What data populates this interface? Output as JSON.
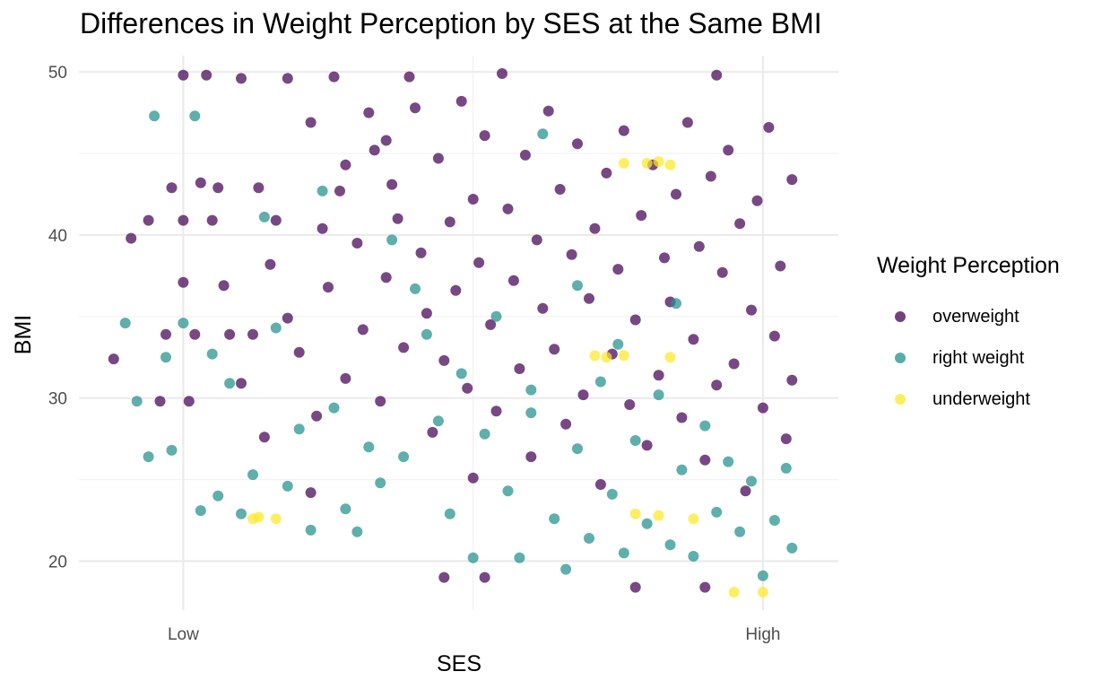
{
  "chart_data": {
    "type": "scatter",
    "title": "Differences in Weight Perception by SES at the Same BMI",
    "xlabel": "SES",
    "ylabel": "BMI",
    "x_ticks": [
      "Low",
      "High"
    ],
    "xlim": [
      -0.18,
      1.13
    ],
    "y_ticks": [
      20,
      30,
      40,
      50
    ],
    "ylim": [
      17,
      51
    ],
    "grid": true,
    "legend_title": "Weight Perception",
    "legend_position": "right",
    "series": [
      {
        "name": "overweight",
        "color": "#440154",
        "points": [
          [
            -0.12,
            32.4
          ],
          [
            -0.09,
            39.8
          ],
          [
            -0.06,
            40.9
          ],
          [
            -0.04,
            29.8
          ],
          [
            -0.03,
            33.9
          ],
          [
            -0.02,
            42.9
          ],
          [
            0.0,
            49.8
          ],
          [
            0.0,
            40.9
          ],
          [
            0.0,
            37.1
          ],
          [
            0.01,
            29.8
          ],
          [
            0.02,
            33.9
          ],
          [
            0.03,
            43.2
          ],
          [
            0.04,
            49.8
          ],
          [
            0.05,
            40.9
          ],
          [
            0.06,
            42.9
          ],
          [
            0.07,
            36.9
          ],
          [
            0.08,
            33.9
          ],
          [
            0.1,
            49.6
          ],
          [
            0.1,
            30.9
          ],
          [
            0.12,
            33.9
          ],
          [
            0.13,
            42.9
          ],
          [
            0.14,
            27.6
          ],
          [
            0.15,
            38.2
          ],
          [
            0.16,
            40.9
          ],
          [
            0.18,
            49.6
          ],
          [
            0.18,
            34.9
          ],
          [
            0.2,
            32.8
          ],
          [
            0.22,
            46.9
          ],
          [
            0.23,
            28.9
          ],
          [
            0.24,
            40.4
          ],
          [
            0.25,
            36.8
          ],
          [
            0.26,
            49.7
          ],
          [
            0.27,
            42.7
          ],
          [
            0.28,
            31.2
          ],
          [
            0.3,
            39.5
          ],
          [
            0.31,
            34.2
          ],
          [
            0.32,
            47.5
          ],
          [
            0.33,
            45.2
          ],
          [
            0.34,
            29.8
          ],
          [
            0.35,
            37.4
          ],
          [
            0.36,
            43.1
          ],
          [
            0.37,
            41.0
          ],
          [
            0.38,
            33.1
          ],
          [
            0.39,
            49.7
          ],
          [
            0.4,
            47.8
          ],
          [
            0.41,
            38.9
          ],
          [
            0.42,
            35.2
          ],
          [
            0.43,
            27.9
          ],
          [
            0.44,
            44.7
          ],
          [
            0.45,
            32.3
          ],
          [
            0.46,
            40.8
          ],
          [
            0.47,
            36.6
          ],
          [
            0.48,
            48.2
          ],
          [
            0.49,
            30.6
          ],
          [
            0.5,
            42.2
          ],
          [
            0.5,
            25.1
          ],
          [
            0.51,
            38.3
          ],
          [
            0.52,
            46.1
          ],
          [
            0.53,
            34.5
          ],
          [
            0.54,
            29.2
          ],
          [
            0.55,
            49.9
          ],
          [
            0.56,
            41.6
          ],
          [
            0.57,
            37.2
          ],
          [
            0.58,
            31.8
          ],
          [
            0.59,
            44.9
          ],
          [
            0.6,
            26.4
          ],
          [
            0.61,
            39.7
          ],
          [
            0.62,
            35.5
          ],
          [
            0.63,
            47.6
          ],
          [
            0.64,
            33.0
          ],
          [
            0.65,
            42.8
          ],
          [
            0.66,
            28.4
          ],
          [
            0.67,
            38.8
          ],
          [
            0.68,
            45.6
          ],
          [
            0.69,
            30.2
          ],
          [
            0.7,
            36.1
          ],
          [
            0.71,
            40.4
          ],
          [
            0.72,
            24.7
          ],
          [
            0.73,
            43.8
          ],
          [
            0.74,
            32.7
          ],
          [
            0.75,
            37.9
          ],
          [
            0.76,
            46.4
          ],
          [
            0.77,
            29.6
          ],
          [
            0.78,
            34.8
          ],
          [
            0.79,
            41.2
          ],
          [
            0.8,
            27.1
          ],
          [
            0.81,
            44.3
          ],
          [
            0.82,
            31.4
          ],
          [
            0.83,
            38.6
          ],
          [
            0.84,
            35.9
          ],
          [
            0.85,
            42.5
          ],
          [
            0.86,
            28.8
          ],
          [
            0.87,
            46.9
          ],
          [
            0.88,
            33.6
          ],
          [
            0.89,
            39.3
          ],
          [
            0.9,
            26.2
          ],
          [
            0.91,
            43.6
          ],
          [
            0.92,
            30.8
          ],
          [
            0.93,
            37.7
          ],
          [
            0.94,
            45.2
          ],
          [
            0.95,
            32.1
          ],
          [
            0.96,
            40.7
          ],
          [
            0.97,
            24.3
          ],
          [
            0.98,
            35.4
          ],
          [
            0.99,
            42.1
          ],
          [
            1.0,
            29.4
          ],
          [
            1.01,
            46.6
          ],
          [
            1.02,
            33.8
          ],
          [
            1.03,
            38.1
          ],
          [
            1.04,
            27.5
          ],
          [
            1.05,
            43.4
          ],
          [
            1.05,
            31.1
          ],
          [
            0.45,
            19.0
          ],
          [
            0.52,
            19.0
          ],
          [
            0.78,
            18.4
          ],
          [
            0.9,
            18.4
          ],
          [
            0.92,
            49.8
          ],
          [
            0.35,
            45.8
          ],
          [
            0.28,
            44.3
          ],
          [
            0.22,
            24.2
          ]
        ]
      },
      {
        "name": "right weight",
        "color": "#21908C",
        "points": [
          [
            -0.1,
            34.6
          ],
          [
            -0.08,
            29.8
          ],
          [
            -0.06,
            26.4
          ],
          [
            -0.05,
            47.3
          ],
          [
            -0.03,
            32.5
          ],
          [
            -0.02,
            26.8
          ],
          [
            0.0,
            34.6
          ],
          [
            0.02,
            47.3
          ],
          [
            0.03,
            23.1
          ],
          [
            0.05,
            32.7
          ],
          [
            0.06,
            24.0
          ],
          [
            0.08,
            30.9
          ],
          [
            0.1,
            22.9
          ],
          [
            0.12,
            25.3
          ],
          [
            0.14,
            41.1
          ],
          [
            0.16,
            34.3
          ],
          [
            0.18,
            24.6
          ],
          [
            0.2,
            28.1
          ],
          [
            0.22,
            21.9
          ],
          [
            0.24,
            42.7
          ],
          [
            0.26,
            29.4
          ],
          [
            0.28,
            23.2
          ],
          [
            0.3,
            21.8
          ],
          [
            0.32,
            27.0
          ],
          [
            0.34,
            24.8
          ],
          [
            0.36,
            39.7
          ],
          [
            0.38,
            26.4
          ],
          [
            0.4,
            36.7
          ],
          [
            0.42,
            33.9
          ],
          [
            0.44,
            28.6
          ],
          [
            0.46,
            22.9
          ],
          [
            0.48,
            31.5
          ],
          [
            0.5,
            20.2
          ],
          [
            0.52,
            27.8
          ],
          [
            0.54,
            35.0
          ],
          [
            0.56,
            24.3
          ],
          [
            0.58,
            20.2
          ],
          [
            0.6,
            29.1
          ],
          [
            0.62,
            46.2
          ],
          [
            0.64,
            22.6
          ],
          [
            0.66,
            19.5
          ],
          [
            0.68,
            26.9
          ],
          [
            0.7,
            21.4
          ],
          [
            0.72,
            31.0
          ],
          [
            0.74,
            24.1
          ],
          [
            0.76,
            20.5
          ],
          [
            0.78,
            27.4
          ],
          [
            0.8,
            22.3
          ],
          [
            0.82,
            30.2
          ],
          [
            0.84,
            21.0
          ],
          [
            0.86,
            25.6
          ],
          [
            0.88,
            20.3
          ],
          [
            0.9,
            28.3
          ],
          [
            0.92,
            23.0
          ],
          [
            0.94,
            26.1
          ],
          [
            0.96,
            21.8
          ],
          [
            0.98,
            24.9
          ],
          [
            1.0,
            19.1
          ],
          [
            1.02,
            22.5
          ],
          [
            1.04,
            25.7
          ],
          [
            1.05,
            20.8
          ],
          [
            0.68,
            36.9
          ],
          [
            0.75,
            33.3
          ],
          [
            0.85,
            35.8
          ],
          [
            0.6,
            30.5
          ]
        ]
      },
      {
        "name": "underweight",
        "color": "#FDE725",
        "points": [
          [
            0.12,
            22.6
          ],
          [
            0.13,
            22.7
          ],
          [
            0.16,
            22.6
          ],
          [
            0.71,
            32.6
          ],
          [
            0.73,
            32.5
          ],
          [
            0.76,
            32.6
          ],
          [
            0.84,
            32.5
          ],
          [
            0.76,
            44.4
          ],
          [
            0.8,
            44.4
          ],
          [
            0.82,
            44.5
          ],
          [
            0.84,
            44.3
          ],
          [
            0.78,
            22.9
          ],
          [
            0.82,
            22.8
          ],
          [
            0.88,
            22.6
          ],
          [
            0.95,
            18.1
          ],
          [
            1.0,
            18.1
          ]
        ]
      }
    ]
  }
}
